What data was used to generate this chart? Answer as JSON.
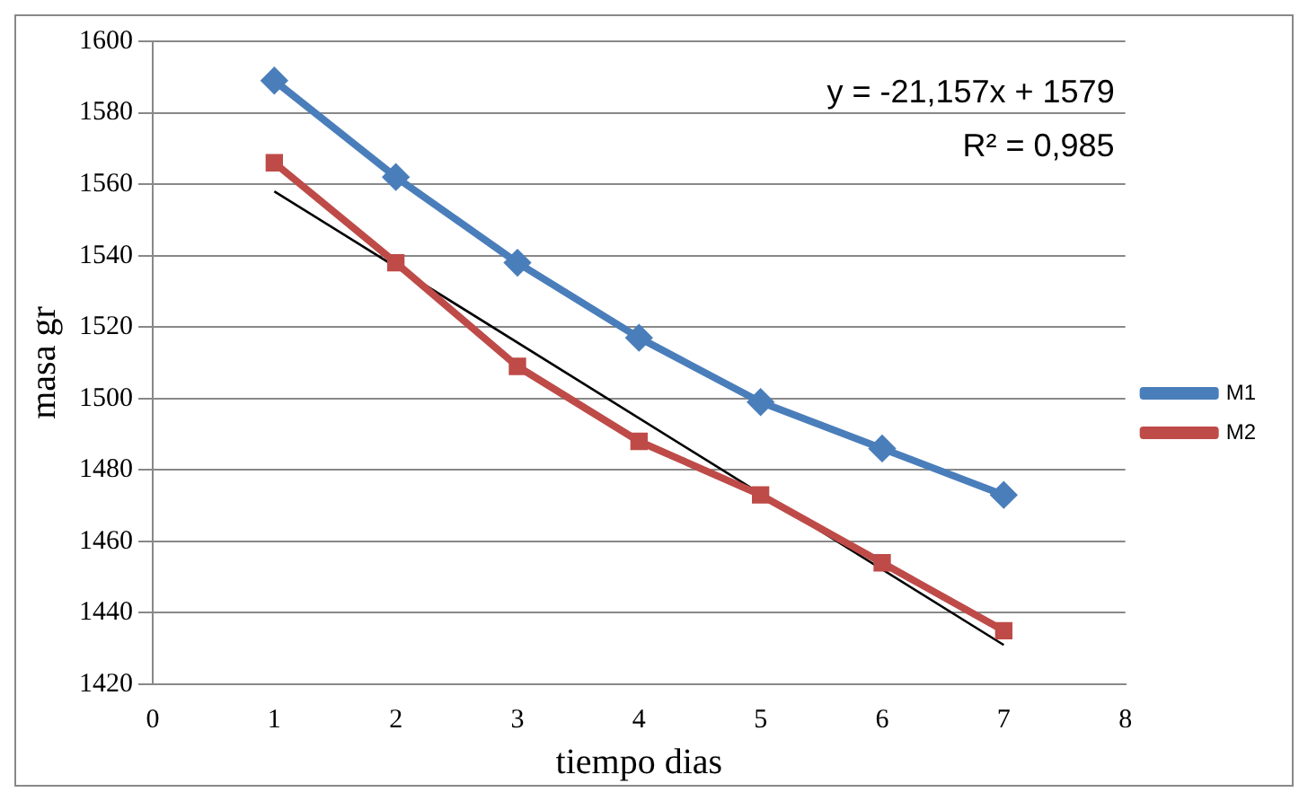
{
  "chart_data": {
    "type": "line",
    "xlabel": "tiempo dias",
    "ylabel": "masa gr",
    "x": [
      1,
      2,
      3,
      4,
      5,
      6,
      7
    ],
    "series": [
      {
        "name": "M1",
        "color": "#4a7ebb",
        "marker": "diamond",
        "values": [
          1589,
          1562,
          1538,
          1517,
          1499,
          1486,
          1473
        ]
      },
      {
        "name": "M2",
        "color": "#be4b48",
        "marker": "square",
        "values": [
          1566,
          1538,
          1509,
          1488,
          1473,
          1454,
          1435
        ]
      },
      {
        "type": "line",
        "color": "#000000",
        "marker": "none",
        "x": [
          1,
          7
        ],
        "values": [
          1558,
          1431
        ]
      }
    ],
    "annotations": [
      "y = -21,157x + 1579",
      "R² = 0,985"
    ],
    "xlim": [
      0,
      8
    ],
    "xticks": [
      0,
      1,
      2,
      3,
      4,
      5,
      6,
      7,
      8
    ],
    "ylim": [
      1420,
      1600
    ],
    "yticks": [
      1420,
      1440,
      1460,
      1480,
      1500,
      1520,
      1540,
      1560,
      1580,
      1600
    ],
    "grid": "y",
    "legend": "right"
  }
}
